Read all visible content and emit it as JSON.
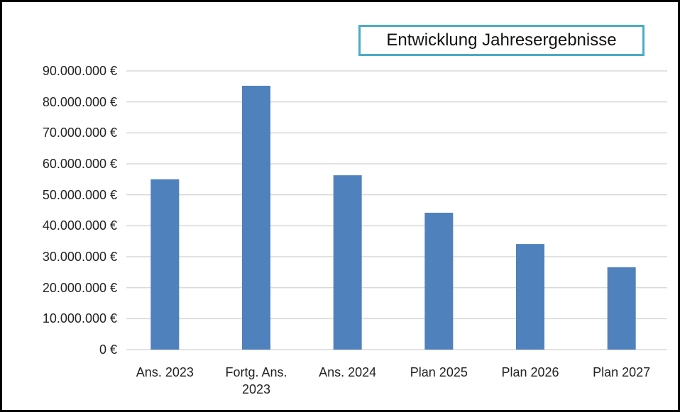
{
  "chart_data": {
    "type": "bar",
    "title": "Entwicklung Jahresergebnisse",
    "categories": [
      "Ans. 2023",
      "Fortg. Ans. 2023",
      "Ans. 2024",
      "Plan 2025",
      "Plan 2026",
      "Plan 2027"
    ],
    "values": [
      55000000,
      85200000,
      56300000,
      44200000,
      34100000,
      26600000
    ],
    "color": "#4f81bd",
    "ylim": [
      0,
      90000000
    ],
    "yticks": [
      {
        "value": 0,
        "label": "0 €"
      },
      {
        "value": 10000000,
        "label": "10.000.000 €"
      },
      {
        "value": 20000000,
        "label": "20.000.000 €"
      },
      {
        "value": 30000000,
        "label": "30.000.000 €"
      },
      {
        "value": 40000000,
        "label": "40.000.000 €"
      },
      {
        "value": 50000000,
        "label": "50.000.000 €"
      },
      {
        "value": 60000000,
        "label": "60.000.000 €"
      },
      {
        "value": 70000000,
        "label": "70.000.000 €"
      },
      {
        "value": 80000000,
        "label": "80.000.000 €"
      },
      {
        "value": 90000000,
        "label": "90.000.000 €"
      }
    ],
    "grid": true
  }
}
